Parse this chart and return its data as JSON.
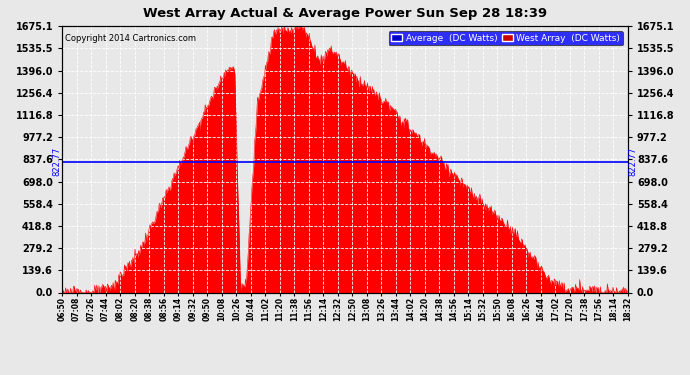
{
  "title": "West Array Actual & Average Power Sun Sep 28 18:39",
  "copyright": "Copyright 2014 Cartronics.com",
  "avg_label": "Average  (DC Watts)",
  "west_label": "West Array  (DC Watts)",
  "avg_value": 822.77,
  "y_ticks": [
    0.0,
    139.6,
    279.2,
    418.8,
    558.4,
    698.0,
    837.6,
    977.2,
    1116.8,
    1256.4,
    1396.0,
    1535.5,
    1675.1
  ],
  "y_max": 1675.1,
  "bg_color": "#e8e8e8",
  "fill_color": "#ff0000",
  "line_color": "#0000ff",
  "grid_color": "#ffffff",
  "x_labels": [
    "06:50",
    "07:08",
    "07:26",
    "07:44",
    "08:02",
    "08:20",
    "08:38",
    "08:56",
    "09:14",
    "09:32",
    "09:50",
    "10:08",
    "10:26",
    "10:44",
    "11:02",
    "11:20",
    "11:38",
    "11:56",
    "12:14",
    "12:32",
    "12:50",
    "13:08",
    "13:26",
    "13:44",
    "14:02",
    "14:20",
    "14:38",
    "14:56",
    "15:14",
    "15:32",
    "15:50",
    "16:08",
    "16:26",
    "16:44",
    "17:02",
    "17:20",
    "17:38",
    "17:56",
    "18:14",
    "18:32"
  ],
  "curve_segments": [
    {
      "t0": 0.0,
      "t1": 0.055,
      "v0": 0,
      "v1": 0
    },
    {
      "t0": 0.055,
      "t1": 0.09,
      "v0": 0,
      "v1": 40
    },
    {
      "t0": 0.09,
      "t1": 0.14,
      "v0": 40,
      "v1": 280
    },
    {
      "t0": 0.14,
      "t1": 0.22,
      "v0": 280,
      "v1": 900
    },
    {
      "t0": 0.22,
      "t1": 0.285,
      "v0": 900,
      "v1": 1380
    },
    {
      "t0": 0.285,
      "t1": 0.305,
      "v0": 1380,
      "v1": 1420
    },
    {
      "t0": 0.305,
      "t1": 0.315,
      "v0": 1420,
      "v1": 50
    },
    {
      "t0": 0.315,
      "t1": 0.325,
      "v0": 50,
      "v1": 30
    },
    {
      "t0": 0.325,
      "t1": 0.345,
      "v0": 30,
      "v1": 1200
    },
    {
      "t0": 0.345,
      "t1": 0.375,
      "v0": 1200,
      "v1": 1640
    },
    {
      "t0": 0.375,
      "t1": 0.41,
      "v0": 1640,
      "v1": 1660
    },
    {
      "t0": 0.41,
      "t1": 0.425,
      "v0": 1660,
      "v1": 1675
    },
    {
      "t0": 0.425,
      "t1": 0.44,
      "v0": 1675,
      "v1": 1580
    },
    {
      "t0": 0.44,
      "t1": 0.455,
      "v0": 1580,
      "v1": 1450
    },
    {
      "t0": 0.455,
      "t1": 0.475,
      "v0": 1450,
      "v1": 1540
    },
    {
      "t0": 0.475,
      "t1": 0.52,
      "v0": 1540,
      "v1": 1350
    },
    {
      "t0": 0.52,
      "t1": 0.57,
      "v0": 1350,
      "v1": 1200
    },
    {
      "t0": 0.57,
      "t1": 0.65,
      "v0": 1200,
      "v1": 900
    },
    {
      "t0": 0.65,
      "t1": 0.73,
      "v0": 900,
      "v1": 600
    },
    {
      "t0": 0.73,
      "t1": 0.8,
      "v0": 600,
      "v1": 380
    },
    {
      "t0": 0.8,
      "t1": 0.855,
      "v0": 380,
      "v1": 100
    },
    {
      "t0": 0.855,
      "t1": 0.89,
      "v0": 100,
      "v1": 20
    },
    {
      "t0": 0.89,
      "t1": 1.0,
      "v0": 20,
      "v1": 10
    }
  ]
}
